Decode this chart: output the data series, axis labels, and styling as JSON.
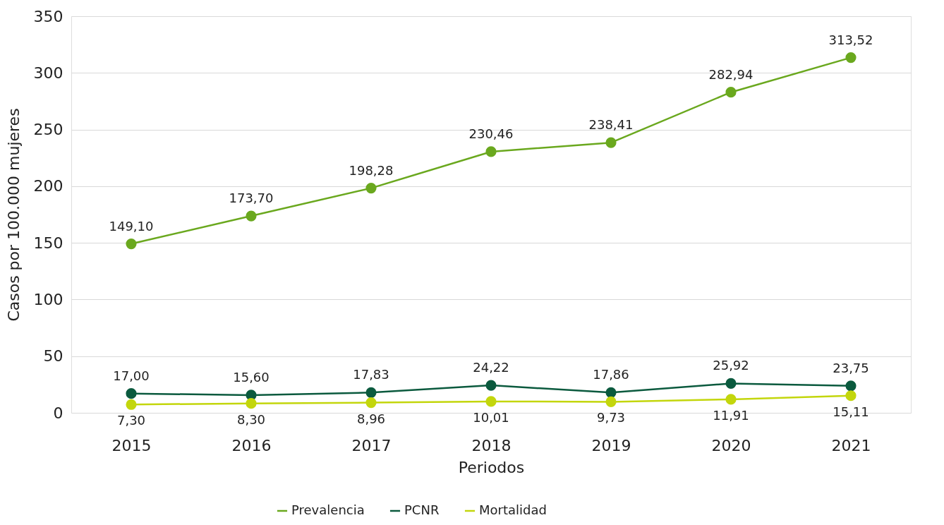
{
  "chart_data": {
    "type": "line",
    "xlabel": "Periodos",
    "ylabel": "Casos por 100.000 mujeres",
    "categories": [
      "2015",
      "2016",
      "2017",
      "2018",
      "2019",
      "2020",
      "2021"
    ],
    "series": [
      {
        "name": "Prevalencia",
        "color": "#6aa81e",
        "values": [
          149.1,
          173.7,
          198.28,
          230.46,
          238.41,
          282.94,
          313.52
        ],
        "value_labels": [
          "149,10",
          "173,70",
          "198,28",
          "230,46",
          "238,41",
          "282,94",
          "313,52"
        ]
      },
      {
        "name": "PCNR",
        "color": "#0b5a3e",
        "values": [
          17.0,
          15.6,
          17.83,
          24.22,
          17.86,
          25.92,
          23.75
        ],
        "value_labels": [
          "17,00",
          "15,60",
          "17,83",
          "24,22",
          "17,86",
          "25,92",
          "23,75"
        ]
      },
      {
        "name": "Mortalidad",
        "color": "#c3d60c",
        "values": [
          7.3,
          8.3,
          8.96,
          10.01,
          9.73,
          11.91,
          15.11
        ],
        "value_labels": [
          "7,30",
          "8,30",
          "8,96",
          "10,01",
          "9,73",
          "11,91",
          "15,11"
        ]
      }
    ],
    "ylim": [
      0,
      350
    ],
    "yticks": [
      0,
      50,
      100,
      150,
      200,
      250,
      300,
      350
    ],
    "grid": "y",
    "legend": "bottom",
    "marker": "circle",
    "line_style": "solid"
  }
}
